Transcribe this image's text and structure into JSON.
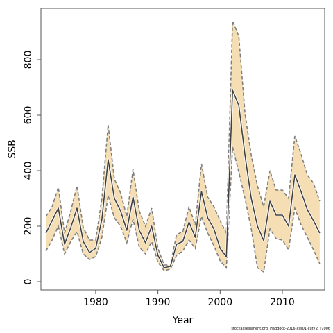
{
  "chart_data": {
    "type": "line",
    "title": "",
    "xlabel": "Year",
    "ylabel": "SSB",
    "xlim": [
      1971.2,
      2016.8
    ],
    "ylim": [
      -30,
      985
    ],
    "xticks": [
      1980,
      1990,
      2000,
      2010
    ],
    "yticks": [
      0,
      200,
      400,
      600,
      800
    ],
    "grid": false,
    "legend": "none",
    "colors": {
      "band": "#f5deb3",
      "bound_line": "#7f7f7f",
      "estimate_line": "#404040"
    },
    "x": [
      1972,
      1973,
      1974,
      1975,
      1976,
      1977,
      1978,
      1979,
      1980,
      1981,
      1982,
      1983,
      1984,
      1985,
      1986,
      1987,
      1988,
      1989,
      1990,
      1991,
      1992,
      1993,
      1994,
      1995,
      1996,
      1997,
      1998,
      1999,
      2000,
      2001,
      2002,
      2003,
      2004,
      2005,
      2006,
      2007,
      2008,
      2009,
      2010,
      2011,
      2012,
      2013,
      2014,
      2015,
      2016
    ],
    "series": [
      {
        "role": "estimate",
        "values": [
          175,
          220,
          265,
          135,
          195,
          265,
          145,
          105,
          120,
          225,
          440,
          300,
          255,
          185,
          305,
          185,
          140,
          200,
          95,
          50,
          55,
          135,
          145,
          215,
          160,
          325,
          230,
          190,
          120,
          90,
          690,
          635,
          455,
          300,
          200,
          148,
          290,
          240,
          240,
          200,
          385,
          325,
          260,
          220,
          175
        ]
      },
      {
        "role": "upper",
        "values": [
          235,
          270,
          340,
          175,
          255,
          345,
          195,
          150,
          150,
          300,
          565,
          370,
          320,
          235,
          405,
          255,
          200,
          265,
          120,
          60,
          60,
          170,
          180,
          270,
          205,
          425,
          305,
          270,
          220,
          175,
          940,
          885,
          605,
          455,
          345,
          270,
          400,
          330,
          330,
          300,
          525,
          460,
          385,
          355,
          290
        ]
      },
      {
        "role": "lower",
        "values": [
          110,
          150,
          200,
          100,
          145,
          180,
          100,
          80,
          90,
          160,
          310,
          230,
          200,
          140,
          225,
          125,
          100,
          145,
          70,
          40,
          45,
          95,
          110,
          150,
          120,
          235,
          175,
          130,
          75,
          50,
          485,
          395,
          300,
          190,
          50,
          35,
          190,
          155,
          150,
          115,
          265,
          205,
          160,
          115,
          65
        ]
      }
    ]
  },
  "caption": "stockassessment.org, Haddock-2016-ass01-cut72, r7006"
}
